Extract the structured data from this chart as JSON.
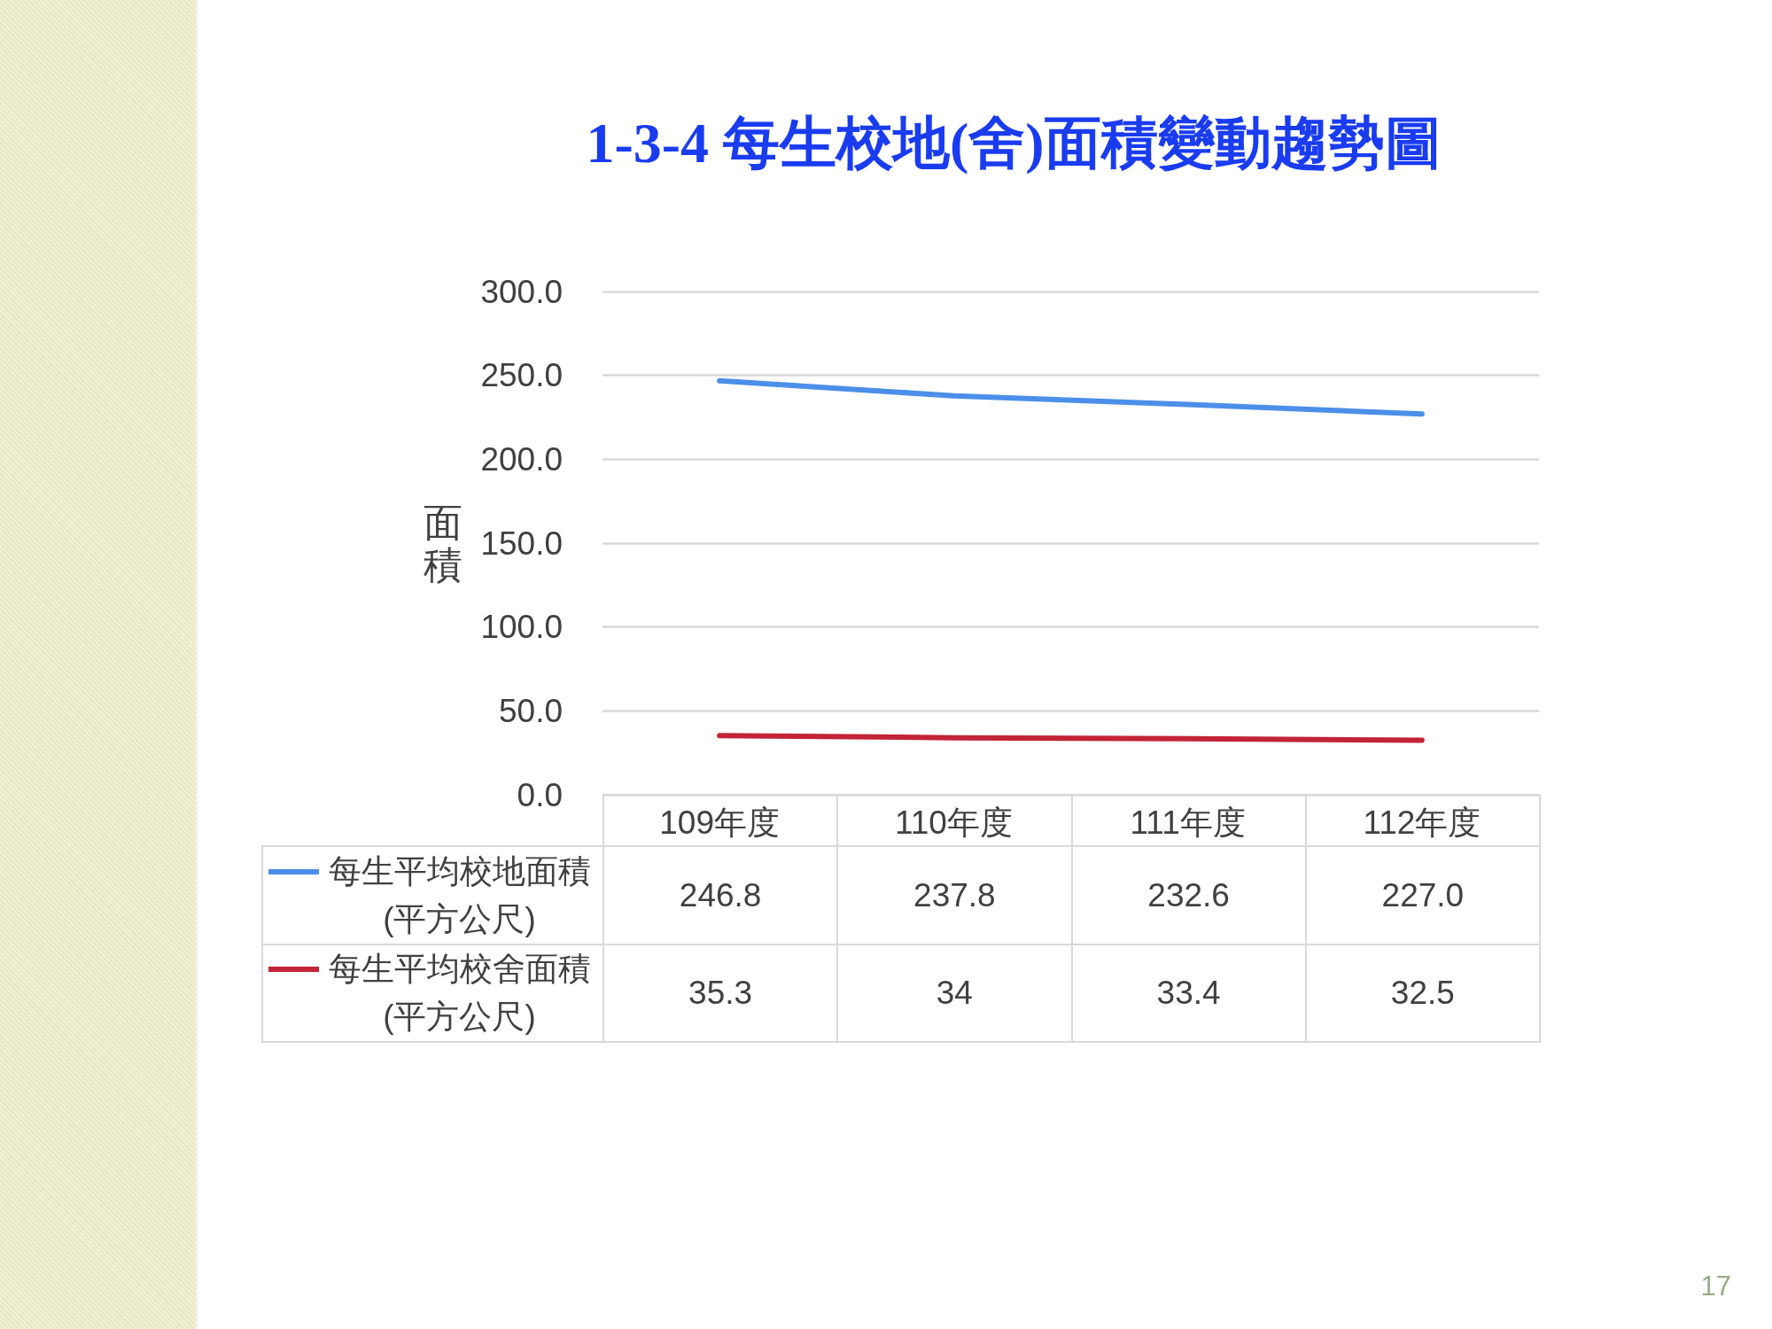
{
  "chart_data": {
    "type": "line",
    "title": "1-3-4 每生校地(舍)面積變動趨勢圖",
    "ylabel": "面積",
    "categories": [
      "109年度",
      "110年度",
      "111年度",
      "112年度"
    ],
    "series": [
      {
        "name": "每生平均校地面積(平方公尺)",
        "color": "#4b8fe8",
        "values": [
          246.8,
          237.8,
          232.6,
          227.0
        ],
        "value_labels": [
          "246.8",
          "237.8",
          "232.6",
          "227.0"
        ]
      },
      {
        "name": "每生平均校舍面積(平方公尺)",
        "color": "#c32437",
        "values": [
          35.3,
          34,
          33.4,
          32.5
        ],
        "value_labels": [
          "35.3",
          "34",
          "33.4",
          "32.5"
        ]
      }
    ],
    "ylim": [
      0,
      300
    ],
    "yticks": [
      {
        "value": 0,
        "label": "0.0"
      },
      {
        "value": 50,
        "label": "50.0"
      },
      {
        "value": 100,
        "label": "100.0"
      },
      {
        "value": 150,
        "label": "150.0"
      },
      {
        "value": 200,
        "label": "200.0"
      },
      {
        "value": 250,
        "label": "250.0"
      },
      {
        "value": 300,
        "label": "300.0"
      }
    ],
    "grid": "y",
    "legend": "bottom left",
    "marker": "none",
    "line_style": "solid",
    "annotations": [
      "17"
    ]
  }
}
